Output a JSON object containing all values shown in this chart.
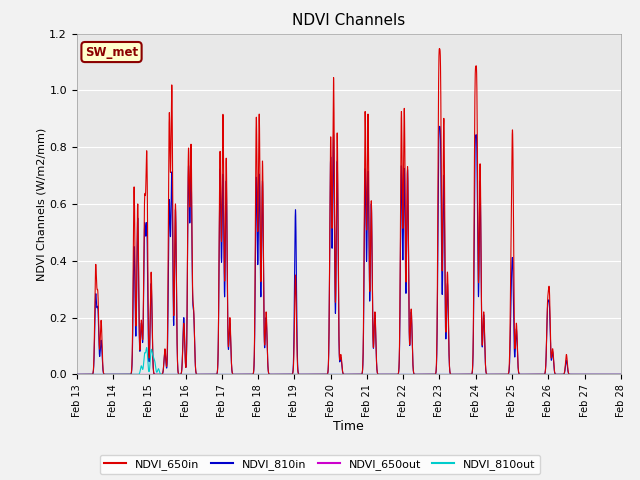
{
  "title": "NDVI Channels",
  "xlabel": "Time",
  "ylabel": "NDVI Channels (W/m2/mm)",
  "ylim": [
    0,
    1.2
  ],
  "fig_facecolor": "#f2f2f2",
  "plot_facecolor": "#e8e8e8",
  "label_box_text": "SW_met",
  "label_box_facecolor": "#ffffcc",
  "label_box_edgecolor": "#8b0000",
  "lines": {
    "NDVI_650in": {
      "color": "#dd0000",
      "linewidth": 0.8
    },
    "NDVI_810in": {
      "color": "#0000cc",
      "linewidth": 0.8
    },
    "NDVI_650out": {
      "color": "#cc00cc",
      "linewidth": 0.8
    },
    "NDVI_810out": {
      "color": "#00cccc",
      "linewidth": 0.8
    }
  },
  "sigma": 0.025,
  "peaks_650in": [
    [
      13.52,
      0.37
    ],
    [
      13.58,
      0.27
    ],
    [
      13.67,
      0.19
    ],
    [
      14.58,
      0.66
    ],
    [
      14.68,
      0.6
    ],
    [
      14.78,
      0.19
    ],
    [
      14.87,
      0.58
    ],
    [
      14.93,
      0.75
    ],
    [
      15.05,
      0.36
    ],
    [
      15.43,
      0.09
    ],
    [
      15.55,
      0.9
    ],
    [
      15.62,
      1.0
    ],
    [
      15.72,
      0.6
    ],
    [
      15.95,
      0.18
    ],
    [
      16.08,
      0.78
    ],
    [
      16.15,
      0.79
    ],
    [
      16.22,
      0.22
    ],
    [
      16.95,
      0.78
    ],
    [
      17.03,
      0.91
    ],
    [
      17.12,
      0.76
    ],
    [
      17.22,
      0.2
    ],
    [
      17.95,
      0.9
    ],
    [
      18.03,
      0.91
    ],
    [
      18.12,
      0.75
    ],
    [
      18.22,
      0.22
    ],
    [
      19.03,
      0.35
    ],
    [
      20.0,
      0.83
    ],
    [
      20.08,
      1.04
    ],
    [
      20.18,
      0.85
    ],
    [
      20.28,
      0.07
    ],
    [
      20.95,
      0.92
    ],
    [
      21.03,
      0.91
    ],
    [
      21.12,
      0.61
    ],
    [
      21.22,
      0.22
    ],
    [
      21.95,
      0.92
    ],
    [
      22.03,
      0.93
    ],
    [
      22.12,
      0.73
    ],
    [
      22.22,
      0.23
    ],
    [
      22.98,
      0.95
    ],
    [
      23.03,
      0.94
    ],
    [
      23.12,
      0.9
    ],
    [
      23.22,
      0.36
    ],
    [
      23.98,
      0.89
    ],
    [
      24.03,
      0.9
    ],
    [
      24.12,
      0.74
    ],
    [
      24.22,
      0.22
    ],
    [
      24.98,
      0.38
    ],
    [
      25.02,
      0.73
    ],
    [
      25.12,
      0.18
    ],
    [
      25.98,
      0.22
    ],
    [
      26.03,
      0.27
    ],
    [
      26.12,
      0.09
    ],
    [
      26.5,
      0.07
    ]
  ],
  "peaks_810in": [
    [
      13.52,
      0.27
    ],
    [
      13.58,
      0.22
    ],
    [
      13.67,
      0.12
    ],
    [
      14.58,
      0.45
    ],
    [
      14.68,
      0.55
    ],
    [
      14.78,
      0.18
    ],
    [
      14.87,
      0.5
    ],
    [
      14.93,
      0.5
    ],
    [
      15.05,
      0.32
    ],
    [
      15.43,
      0.08
    ],
    [
      15.55,
      0.6
    ],
    [
      15.62,
      0.7
    ],
    [
      15.72,
      0.58
    ],
    [
      15.95,
      0.2
    ],
    [
      16.08,
      0.72
    ],
    [
      16.15,
      0.7
    ],
    [
      16.22,
      0.21
    ],
    [
      16.95,
      0.72
    ],
    [
      17.03,
      0.7
    ],
    [
      17.12,
      0.68
    ],
    [
      17.22,
      0.18
    ],
    [
      17.95,
      0.69
    ],
    [
      18.03,
      0.7
    ],
    [
      18.12,
      0.68
    ],
    [
      18.22,
      0.2
    ],
    [
      19.03,
      0.58
    ],
    [
      20.0,
      0.76
    ],
    [
      20.08,
      0.84
    ],
    [
      20.18,
      0.75
    ],
    [
      20.28,
      0.06
    ],
    [
      20.95,
      0.72
    ],
    [
      21.03,
      0.71
    ],
    [
      21.12,
      0.6
    ],
    [
      21.22,
      0.21
    ],
    [
      21.95,
      0.73
    ],
    [
      22.03,
      0.72
    ],
    [
      22.12,
      0.72
    ],
    [
      22.22,
      0.22
    ],
    [
      22.98,
      0.72
    ],
    [
      23.03,
      0.72
    ],
    [
      23.12,
      0.7
    ],
    [
      23.22,
      0.32
    ],
    [
      23.98,
      0.69
    ],
    [
      24.03,
      0.7
    ],
    [
      24.12,
      0.68
    ],
    [
      24.22,
      0.21
    ],
    [
      24.98,
      0.22
    ],
    [
      25.02,
      0.33
    ],
    [
      25.12,
      0.16
    ],
    [
      25.98,
      0.21
    ],
    [
      26.03,
      0.22
    ],
    [
      26.12,
      0.08
    ],
    [
      26.5,
      0.05
    ]
  ],
  "peaks_650out": [],
  "peaks_810out": [
    [
      14.78,
      0.03
    ],
    [
      14.87,
      0.07
    ],
    [
      14.93,
      0.09
    ],
    [
      15.05,
      0.08
    ],
    [
      15.1,
      0.05
    ],
    [
      15.15,
      0.04
    ],
    [
      15.25,
      0.02
    ]
  ],
  "xtick_labels": [
    "Feb 13",
    "Feb 14",
    "Feb 15",
    "Feb 16",
    "Feb 17",
    "Feb 18",
    "Feb 19",
    "Feb 20",
    "Feb 21",
    "Feb 22",
    "Feb 23",
    "Feb 24",
    "Feb 25",
    "Feb 26",
    "Feb 27",
    "Feb 28"
  ],
  "xtick_days": [
    13,
    14,
    15,
    16,
    17,
    18,
    19,
    20,
    21,
    22,
    23,
    24,
    25,
    26,
    27,
    28
  ]
}
